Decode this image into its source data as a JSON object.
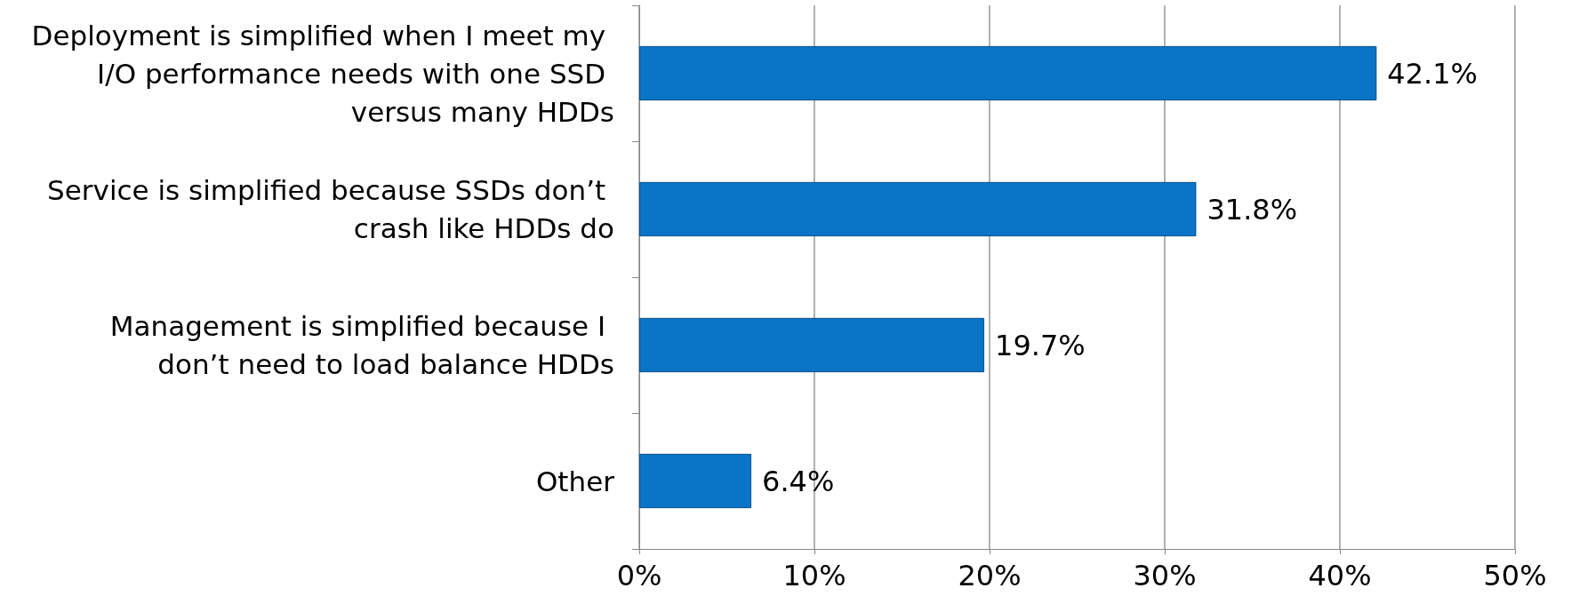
{
  "chart_data": {
    "type": "bar",
    "orientation": "horizontal",
    "categories": [
      "Deployment is simplified when I meet my I/O performance needs with one SSD versus many HDDs",
      "Service is simplified because SSDs don’t crash like HDDs do",
      "Management is simplified because I don’t need to load balance HDDs",
      "Other"
    ],
    "values": [
      42.1,
      31.8,
      19.7,
      6.4
    ],
    "value_labels": [
      "42.1%",
      "31.8%",
      "19.7%",
      "6.4%"
    ],
    "color": "#0a74c6",
    "xlim": [
      0,
      50
    ],
    "xticks": [
      {
        "value": 0,
        "label": "0%"
      },
      {
        "value": 10,
        "label": "10%"
      },
      {
        "value": 20,
        "label": "20%"
      },
      {
        "value": 30,
        "label": "30%"
      },
      {
        "value": 40,
        "label": "40%"
      },
      {
        "value": 50,
        "label": "50%"
      }
    ],
    "grid": "x"
  }
}
